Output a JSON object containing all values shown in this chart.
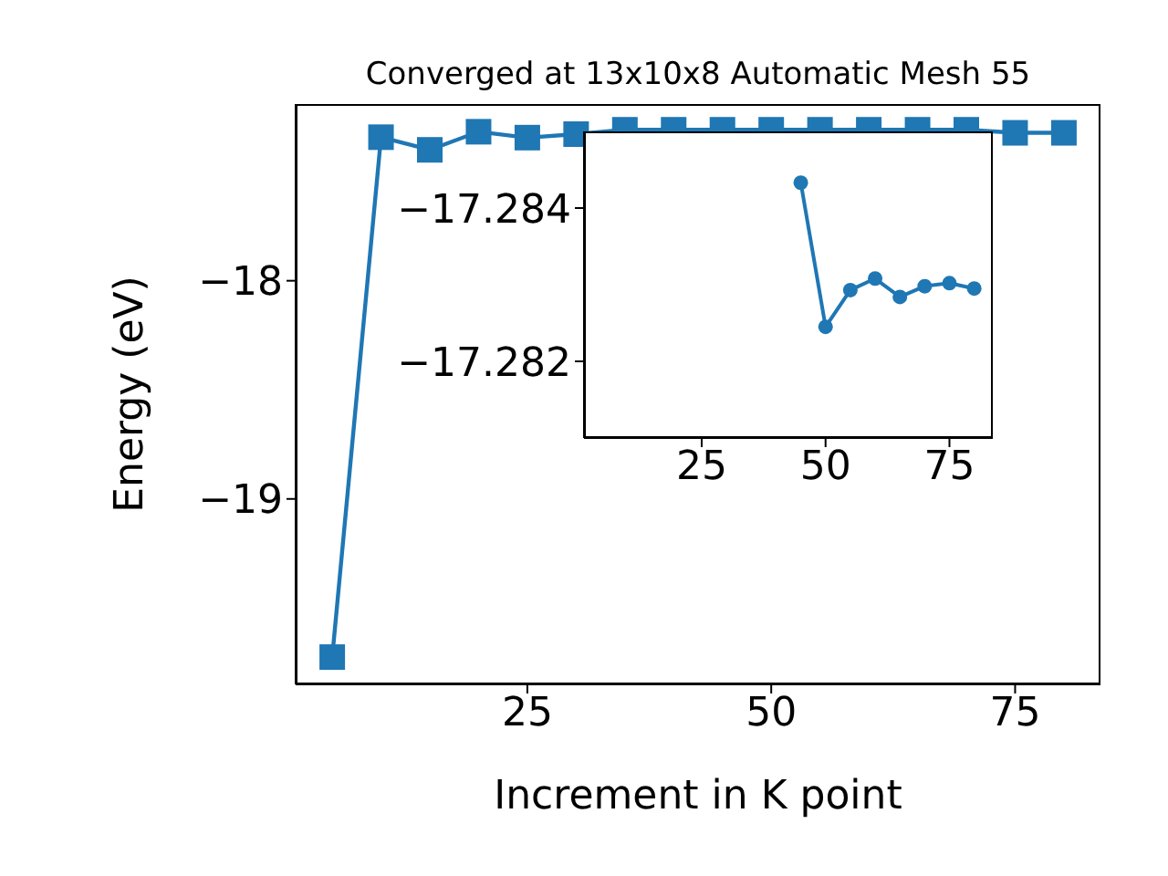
{
  "chart_data": [
    {
      "type": "line",
      "title": "Converged at 13x10x8 Automatic Mesh 55",
      "xlabel": "Increment in K point",
      "ylabel": "Energy (eV)",
      "x": [
        5,
        10,
        15,
        20,
        25,
        30,
        35,
        40,
        45,
        50,
        55,
        60,
        65,
        70,
        75,
        80
      ],
      "series": [
        {
          "color": "#1f77b4",
          "values": [
            -19.725,
            -17.342,
            -17.4,
            -17.317,
            -17.344,
            -17.328,
            -17.308,
            -17.308,
            -17.308,
            -17.308,
            -17.308,
            -17.308,
            -17.308,
            -17.308,
            -17.322,
            -17.322
          ]
        }
      ],
      "marker": "square",
      "xlim": [
        1.25,
        83.75
      ],
      "xticks": [
        25,
        50,
        75
      ],
      "ylim": [
        -19.85,
        -17.19
      ],
      "yticks": [
        {
          "value": -19,
          "label": "−19"
        },
        {
          "value": -18,
          "label": "−18"
        }
      ],
      "grid": false
    },
    {
      "type": "line",
      "x": [
        45,
        50,
        55,
        60,
        65,
        70,
        75,
        80
      ],
      "series": [
        {
          "color": "#1f77b4",
          "values": [
            -17.28433,
            -17.28245,
            -17.28293,
            -17.28308,
            -17.28284,
            -17.28298,
            -17.28302,
            -17.28295
          ]
        }
      ],
      "marker": "circle",
      "xlim": [
        1.25,
        83.75
      ],
      "xticks": [
        25,
        50,
        75
      ],
      "ylim": [
        -17.281,
        -17.285
      ],
      "yticks": [
        {
          "value": -17.284,
          "label": "−17.284"
        },
        {
          "value": -17.282,
          "label": "−17.282"
        }
      ],
      "grid": false
    }
  ]
}
